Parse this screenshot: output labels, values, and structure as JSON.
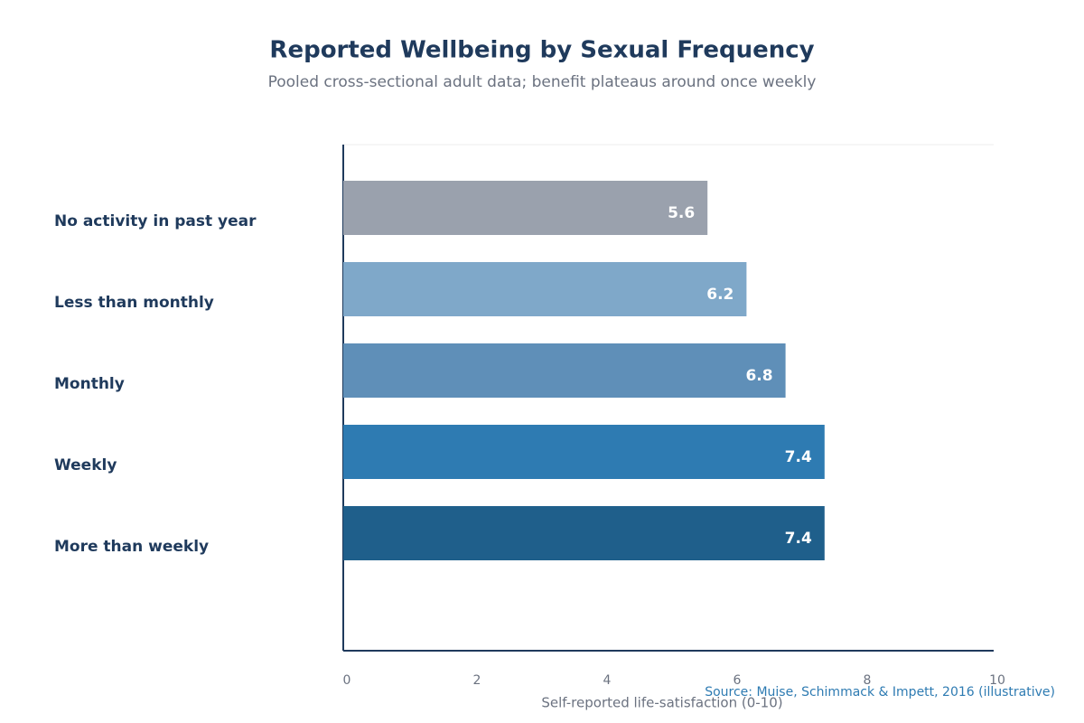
{
  "chart_data": {
    "type": "bar",
    "title": "Reported Wellbeing by Sexual Frequency",
    "subtitle": "Pooled cross-sectional adult data; benefit plateaus around once weekly",
    "x_label": "Self-reported life-satisfaction (0-10)",
    "source": "Source: Muise, Schimmack & Impett, 2016 (illustrative)",
    "categories": [
      "No activity in past year",
      "Less than monthly",
      "Monthly",
      "Weekly",
      "More than weekly"
    ],
    "values": [
      5.6,
      6.2,
      6.8,
      7.4,
      7.4
    ],
    "colors": [
      "#9aa1ad",
      "#7fa8c9",
      "#5f8fb8",
      "#2e7bb2",
      "#1f5f8b"
    ],
    "xlim": [
      0,
      10
    ],
    "xticks": [
      0,
      2,
      4,
      6,
      8,
      10
    ]
  }
}
